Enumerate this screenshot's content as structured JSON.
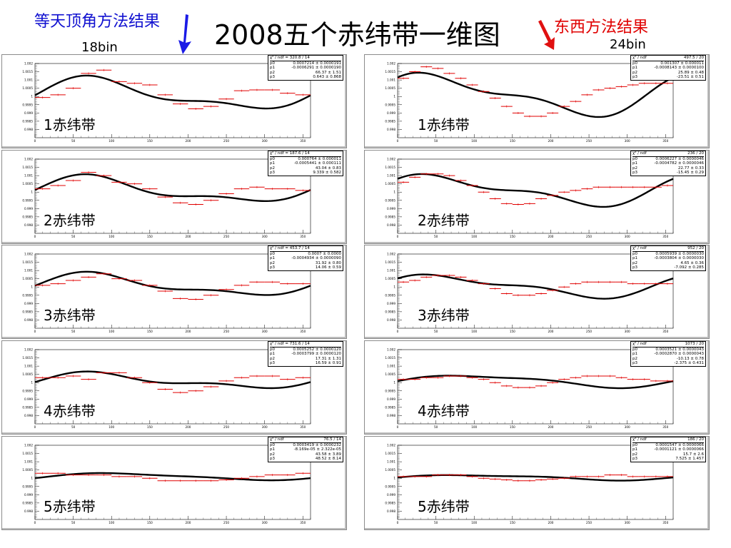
{
  "page": {
    "title": "2008五个赤纬带一维图",
    "left_header": "等天顶角方法结果",
    "right_header": "东西方法结果",
    "left_bins": "18bin",
    "right_bins": "24bin",
    "left_arrow_color": "#1a1ae6",
    "right_arrow_color": "#e01010"
  },
  "chart_data": [
    {
      "type": "line",
      "band": "1赤纬带",
      "method": "left",
      "bins": 18,
      "xlim": [
        0,
        360
      ],
      "ylim": [
        0.9975,
        1.002
      ],
      "yticks": [
        "1.002",
        "1.0015",
        "1.001",
        "1.0005",
        "1",
        "0.9995",
        "0.999",
        "0.9985",
        "0.998"
      ],
      "xticks": [
        "0",
        "50",
        "100",
        "150",
        "200",
        "250",
        "300",
        "350"
      ],
      "stats": {
        "chi": "χ² / ndf = 320.8 / 14",
        "p0": "0.0007214 ± 0.0000191",
        "p1": "-0.0006291 ± 0.0000190",
        "p2": "66.37 ± 1.51",
        "p3": "0.643 ± 0.868"
      },
      "fit": {
        "A": 0.00085,
        "phi": 80,
        "B": 0.00035,
        "phi2": 60,
        "c": 1.0001
      },
      "points": [
        0.99994,
        1.0001,
        1.0005,
        1.0014,
        1.0016,
        1.0009,
        1.0008,
        1.0007,
        1.0001,
        0.99955,
        0.99925,
        0.9994,
        0.99985,
        1.00035,
        1.0004,
        1.0004,
        1.0002,
        1.0001
      ]
    },
    {
      "type": "line",
      "band": "1赤纬带",
      "method": "right",
      "bins": 24,
      "xlim": [
        0,
        360
      ],
      "ylim": [
        0.9975,
        1.002
      ],
      "yticks": [
        "1.002",
        "1.0015",
        "1.001",
        "1.0005",
        "1",
        "0.9995",
        "0.999",
        "0.9985",
        "0.998"
      ],
      "xticks": [
        "0",
        "50",
        "100",
        "150",
        "200",
        "250",
        "300",
        "350"
      ],
      "stats": {
        "chi": "χ² / ndf",
        "p0": "0.001307 ± 0.000011",
        "p1": "-0.0008143 ± 0.0000100",
        "p2": "25.89 ± 0.48",
        "p3": "-23.51 ± 0.51",
        "val": "497.5 / 20"
      },
      "fit": {
        "A": 0.0011,
        "phi": 55,
        "B": 0.00045,
        "phi2": 10,
        "c": 1.0001
      },
      "points": [
        1.0011,
        1.0015,
        1.0018,
        1.0017,
        1.0014,
        1.0011,
        1.0007,
        1.0003,
        0.9999,
        0.9994,
        0.999,
        0.9988,
        0.9988,
        0.999,
        0.9994,
        0.9997,
        1.0001,
        1.0004,
        1.0005,
        1.0006,
        1.0007,
        1.0008,
        1.0008,
        1.0008
      ]
    },
    {
      "type": "line",
      "band": "2赤纬带",
      "method": "left",
      "bins": 18,
      "xlim": [
        0,
        360
      ],
      "ylim": [
        0.9975,
        1.002
      ],
      "yticks": [
        "1.002",
        "1.0015",
        "1.001",
        "1.0005",
        "1",
        "0.9995",
        "0.999",
        "0.9985",
        "0.998"
      ],
      "xticks": [
        "0",
        "50",
        "100",
        "150",
        "200",
        "250",
        "300",
        "350"
      ],
      "stats": {
        "chi": "χ² / ndf = 187.6 / 14",
        "p0": "0.000764 ± 0.000011",
        "p1": "-0.0005441 ± 0.000111",
        "p2": "43.04 ± 0.83",
        "p3": "9.339 ± 0.582"
      },
      "fit": {
        "A": 0.0007,
        "phi": 75,
        "B": 0.0003,
        "phi2": 60,
        "c": 1.0001
      },
      "points": [
        1.0002,
        1.0004,
        1.0007,
        1.0012,
        1.001,
        1.0006,
        1.0005,
        1.0002,
        0.9997,
        0.99935,
        0.99925,
        0.9995,
        0.9999,
        1.0002,
        1.0003,
        1.0002,
        1.0002,
        1.0001
      ]
    },
    {
      "type": "line",
      "band": "2赤纬带",
      "method": "right",
      "bins": 24,
      "xlim": [
        0,
        360
      ],
      "ylim": [
        0.9975,
        1.002
      ],
      "yticks": [
        "1.002",
        "1.0015",
        "1.001",
        "1.0005",
        "1",
        "0.9995",
        "0.999",
        "0.9985",
        "0.998"
      ],
      "xticks": [
        "0",
        "50",
        "100",
        "150",
        "200",
        "250",
        "300",
        "350"
      ],
      "stats": {
        "chi": "χ² / ndf",
        "p0": "0.0006227 ± 0.0000046",
        "p1": "-0.0004782 ± 0.0000046",
        "p2": "22.77 ± 0.33",
        "p3": "-15.45 ± 0.29",
        "val": "236 / 20"
      },
      "fit": {
        "A": 0.0008,
        "phi": 60,
        "B": 0.00035,
        "phi2": 15,
        "c": 1.0001
      },
      "points": [
        1.0006,
        1.0009,
        1.0011,
        1.0011,
        1.001,
        1.0007,
        1.0004,
        1.0,
        0.9996,
        0.9993,
        0.99925,
        0.9993,
        0.9996,
        0.9998,
        1.0,
        1.0001,
        1.0002,
        1.0003,
        1.0003,
        1.0003,
        1.0003,
        1.0003,
        1.0003,
        1.0004
      ]
    },
    {
      "type": "line",
      "band": "3赤纬带",
      "method": "left",
      "bins": 18,
      "xlim": [
        0,
        360
      ],
      "ylim": [
        0.9975,
        1.002
      ],
      "yticks": [
        "1.002",
        "1.0015",
        "1.001",
        "1.0005",
        "1",
        "0.9995",
        "0.999",
        "0.9985",
        "0.998"
      ],
      "xticks": [
        "0",
        "50",
        "100",
        "150",
        "200",
        "250",
        "300",
        "350"
      ],
      "stats": {
        "chi": "χ² / ndf = 453.7 / 14",
        "p0": "0.0007 ± 0.0000",
        "p1": "-0.0004934 ± 0.0000090",
        "p2": "31.92 ± 0.80",
        "p3": "14.06 ± 0.59"
      },
      "fit": {
        "A": 0.0006,
        "phi": 80,
        "B": 0.00025,
        "phi2": 60,
        "c": 1.0001
      },
      "points": [
        1.0001,
        1.0002,
        1.0004,
        1.0006,
        1.0008,
        1.0005,
        1.0004,
        1.0001,
        0.99975,
        0.9993,
        0.99925,
        0.9995,
        0.99985,
        1.0001,
        1.0003,
        1.0003,
        1.0002,
        1.0002
      ]
    },
    {
      "type": "line",
      "band": "3赤纬带",
      "method": "right",
      "bins": 24,
      "xlim": [
        0,
        360
      ],
      "ylim": [
        0.9975,
        1.002
      ],
      "yticks": [
        "1.002",
        "1.0015",
        "1.001",
        "1.0005",
        "1",
        "0.9995",
        "0.999",
        "0.9985",
        "0.998"
      ],
      "xticks": [
        "0",
        "50",
        "100",
        "150",
        "200",
        "250",
        "300",
        "350"
      ],
      "stats": {
        "chi": "χ² / ndf",
        "p0": "0.0005939 ± 0.0000030",
        "p1": "-0.0003804 ± 0.0000030",
        "p2": "4.65 ± 0.36",
        "p3": "-7.092 ± 0.285",
        "val": "952 / 20"
      },
      "fit": {
        "A": 0.0006,
        "phi": 65,
        "B": 0.00025,
        "phi2": 15,
        "c": 1.00005
      },
      "points": [
        1.0003,
        1.0004,
        1.0006,
        1.0007,
        1.0007,
        1.0006,
        1.0004,
        1.0002,
        0.9999,
        0.9996,
        0.9995,
        0.9995,
        0.9996,
        0.9998,
        1.0,
        1.0002,
        1.0003,
        1.0003,
        1.0003,
        1.0003,
        1.0002,
        1.0002,
        1.0002,
        1.0002
      ]
    },
    {
      "type": "line",
      "band": "4赤纬带",
      "method": "left",
      "bins": 18,
      "xlim": [
        0,
        360
      ],
      "ylim": [
        0.9975,
        1.002
      ],
      "yticks": [
        "1.002",
        "1.0015",
        "1.001",
        "1.0005",
        "1",
        "0.9995",
        "0.999",
        "0.9985",
        "0.998"
      ],
      "xticks": [
        "0",
        "50",
        "100",
        "150",
        "200",
        "250",
        "300",
        "350"
      ],
      "stats": {
        "chi": "χ² / ndf = 731.6 / 14",
        "p0": "0.0005252 ± 0.0000120",
        "p1": "-0.0003799 ± 0.0000120",
        "p2": "17.31 ± 1.31",
        "p3": "16.59 ± 0.91"
      },
      "fit": {
        "A": 0.0004,
        "phi": 85,
        "B": 0.0002,
        "phi2": 60,
        "c": 1.0001
      },
      "points": [
        1.0003,
        1.0003,
        1.0004,
        1.0002,
        1.0006,
        1.0006,
        1.0003,
        1.0,
        0.9996,
        0.9994,
        0.9995,
        0.99975,
        1.0001,
        1.0003,
        1.0004,
        1.0004,
        1.0002,
        1.0003
      ]
    },
    {
      "type": "line",
      "band": "4赤纬带",
      "method": "right",
      "bins": 24,
      "xlim": [
        0,
        360
      ],
      "ylim": [
        0.9975,
        1.002
      ],
      "yticks": [
        "1.002",
        "1.0015",
        "1.001",
        "1.0005",
        "1",
        "0.9995",
        "0.999",
        "0.9985",
        "0.998"
      ],
      "xticks": [
        "0",
        "50",
        "100",
        "150",
        "200",
        "250",
        "300",
        "350"
      ],
      "stats": {
        "chi": "χ² / ndf",
        "p0": "0.0003521 ± 0.0000043",
        "p1": "-0.0002870 ± 0.0000043",
        "p2": "-10.13 ± 0.78",
        "p3": "-2.375 ± 0.431",
        "val": "1073 / 20"
      },
      "fit": {
        "A": 0.00035,
        "phi": 100,
        "B": 0.0001,
        "phi2": 30,
        "c": 1.0001
      },
      "points": [
        1.0002,
        1.0002,
        1.0003,
        1.0003,
        1.0004,
        1.0004,
        1.0003,
        1.0002,
        1.0,
        0.9998,
        0.9997,
        0.9997,
        0.9998,
        1.0,
        1.0002,
        1.0003,
        1.0004,
        1.0004,
        1.0004,
        1.0003,
        1.0002,
        1.0002,
        1.0001,
        1.0001
      ]
    },
    {
      "type": "line",
      "band": "5赤纬带",
      "method": "left",
      "bins": 18,
      "xlim": [
        0,
        360
      ],
      "ylim": [
        0.9975,
        1.002
      ],
      "yticks": [
        "1.002",
        "1.0015",
        "1.001",
        "1.0005",
        "1",
        "0.9995",
        "0.999",
        "0.9985",
        "0.998"
      ],
      "xticks": [
        "0",
        "50",
        "100",
        "150",
        "200",
        "250",
        "300",
        "350"
      ],
      "stats": {
        "chi": "χ² / ndf",
        "p0": "0.0003419 ± 0.0000232",
        "p1": "-8.169e-05 ± 2.322e-05",
        "p2": "43.58 ± 3.89",
        "p3": "48.52 ± 8.14",
        "val": "76.5 / 14"
      },
      "fit": {
        "A": 0.0002,
        "phi": 110,
        "B": 5e-05,
        "phi2": 60,
        "c": 1.0001
      },
      "points": [
        1.0003,
        1.0003,
        1.0002,
        1.0002,
        1.0002,
        1.0001,
        1.0001,
        1.0,
        0.99985,
        0.99985,
        0.99985,
        0.99985,
        0.9999,
        1.0,
        1.0001,
        1.0002,
        1.0002,
        1.0003
      ]
    },
    {
      "type": "line",
      "band": "5赤纬带",
      "method": "right",
      "bins": 24,
      "xlim": [
        0,
        360
      ],
      "ylim": [
        0.9975,
        1.002
      ],
      "yticks": [
        "1.002",
        "1.0015",
        "1.001",
        "1.0005",
        "1",
        "0.9995",
        "0.999",
        "0.9985",
        "0.998"
      ],
      "xticks": [
        "0",
        "50",
        "100",
        "150",
        "200",
        "250",
        "300",
        "350"
      ],
      "stats": {
        "chi": "χ² / ndf",
        "p0": "0.0001547 ± 0.0000066",
        "p1": "-0.0001121 ± 0.0000066",
        "p2": "15.7 ± 2.6",
        "p3": "7.525 ± 1.457",
        "val": "186 / 20"
      },
      "fit": {
        "A": 0.00015,
        "phi": 100,
        "B": 5e-05,
        "phi2": 30,
        "c": 1.00005
      },
      "points": [
        1.0001,
        1.0001,
        1.0001,
        1.0002,
        1.0002,
        1.0002,
        1.0001,
        1.0,
        0.99995,
        0.9999,
        0.99985,
        0.99985,
        0.9999,
        0.99995,
        1.0,
        1.0001,
        1.0001,
        1.0001,
        1.0002,
        1.0002,
        1.0001,
        1.0001,
        1.0001,
        1.0001
      ]
    }
  ]
}
